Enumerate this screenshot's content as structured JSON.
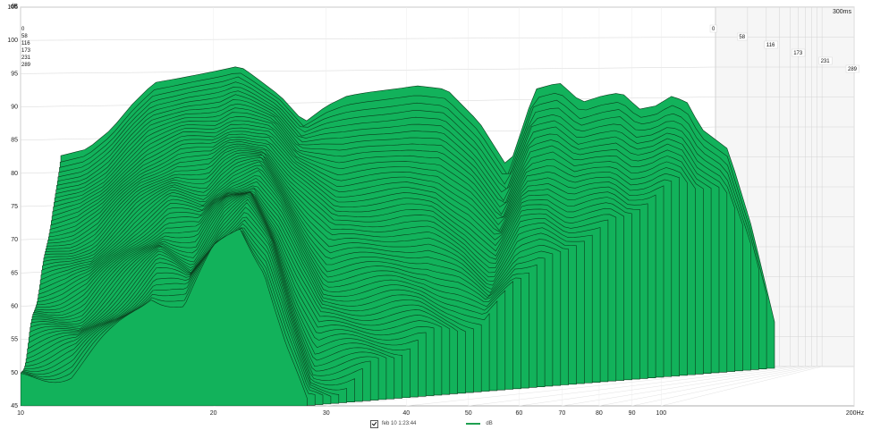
{
  "chart_data": {
    "type": "area",
    "chart_style": "3D waterfall plot",
    "units": {
      "y": "dB",
      "x": "Hz",
      "time_max": "300ms"
    },
    "x_axis": {
      "scale": "log",
      "range": [
        10,
        200
      ],
      "ticks": [
        "10",
        "20",
        "30",
        "40",
        "50",
        "60",
        "70",
        "80",
        "90",
        "100"
      ],
      "end_label": "200Hz"
    },
    "y_axis": {
      "range": [
        45,
        105
      ],
      "ticks": [
        "50",
        "55",
        "60",
        "65",
        "70",
        "75",
        "80",
        "85",
        "90",
        "95",
        "100",
        "105"
      ],
      "unit_label": "dB"
    },
    "time_axis": {
      "labels": [
        "0",
        "58",
        "116",
        "173",
        "231",
        "289"
      ],
      "end_label": "300ms"
    },
    "first_slice": {
      "x": [
        10,
        11,
        12,
        13,
        14,
        15,
        16,
        17,
        18,
        19,
        20,
        22,
        24,
        26,
        28,
        30,
        33,
        36,
        40,
        45,
        50,
        55,
        60,
        65,
        70,
        75,
        80,
        85,
        90,
        95,
        100,
        110,
        120,
        130
      ],
      "y": [
        77,
        78,
        81,
        85,
        88,
        88.5,
        89,
        89.5,
        90,
        90.5,
        89,
        86,
        82,
        84.5,
        86,
        86.5,
        87,
        87.5,
        87,
        82,
        75,
        87,
        88,
        85,
        86,
        86.5,
        84,
        84.5,
        86,
        85,
        81,
        78,
        66,
        52
      ]
    },
    "last_slice": {
      "x": [
        10,
        12,
        14,
        16,
        18,
        20,
        22,
        24,
        26,
        28
      ],
      "y": [
        49,
        50,
        56,
        62,
        60,
        68,
        72,
        66,
        54,
        45
      ]
    },
    "slice_count": 60,
    "colors": {
      "fill": "#12b25b",
      "outline": "#0b3d1d",
      "grid": "#d4d4d4",
      "axis": "#707070"
    }
  },
  "legend": {
    "series_label": "feb 10 1:23:44",
    "unit": "dB"
  }
}
